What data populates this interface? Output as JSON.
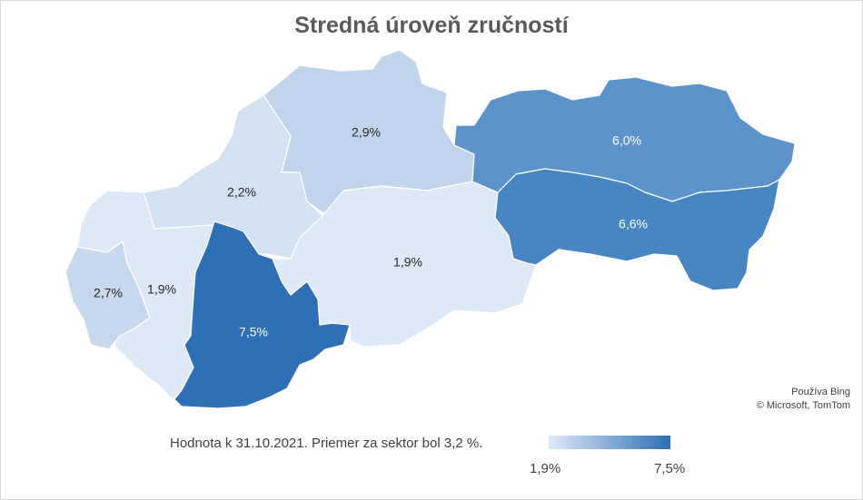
{
  "chart": {
    "title": "Stredná úroveň zručností",
    "note": "Hodnota k 31.10.2021. Priemer za sektor bol 3,2 %.",
    "attribution_line1": "Používa Bing",
    "attribution_line2": "© Microsoft, TomTom",
    "legend": {
      "min_label": "1,9%",
      "max_label": "7,5%",
      "min_color": "#dde9f7",
      "max_color": "#2e6fb5"
    }
  },
  "chart_data": {
    "type": "choropleth",
    "min": 1.9,
    "max": 7.5,
    "regions": [
      {
        "id": "bratislavsky",
        "label": "2,7%",
        "value": 2.7,
        "color": "#c6d8ee"
      },
      {
        "id": "trnavsky",
        "label": "1,9%",
        "value": 1.9,
        "color": "#dde9f7"
      },
      {
        "id": "trenciansky",
        "label": "2,2%",
        "value": 2.2,
        "color": "#d3e2f3"
      },
      {
        "id": "nitriansky",
        "label": "7,5%",
        "value": 7.5,
        "color": "#2e6fb5"
      },
      {
        "id": "zilinsky",
        "label": "2,9%",
        "value": 2.9,
        "color": "#c0d5ec"
      },
      {
        "id": "banskobystricky",
        "label": "1,9%",
        "value": 1.9,
        "color": "#dde9f7"
      },
      {
        "id": "presovsky",
        "label": "6,0%",
        "value": 6.0,
        "color": "#5c93cb"
      },
      {
        "id": "kosicky",
        "label": "6,6%",
        "value": 6.6,
        "color": "#4786c2"
      }
    ]
  }
}
